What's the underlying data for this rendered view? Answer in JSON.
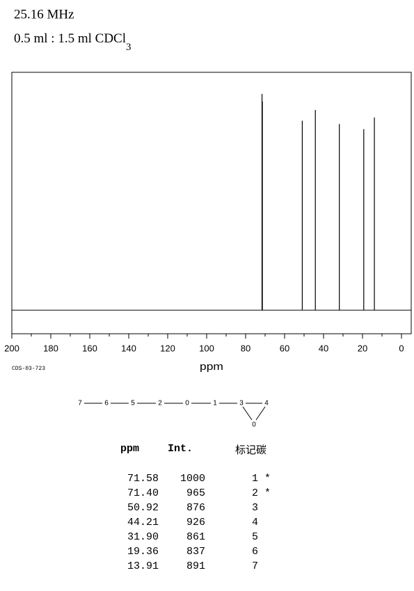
{
  "header": {
    "frequency": "25.16 MHz",
    "solvent": "0.5 ml : 1.5 ml CDCl",
    "solvent_subscript": "3"
  },
  "chart_data": {
    "type": "spectrum",
    "xlabel": "ppm",
    "x": [
      71.58,
      71.4,
      50.92,
      44.21,
      31.9,
      19.36,
      13.91
    ],
    "x_labels": [
      "71.58",
      "71.40",
      "50.92",
      "44.21",
      "31.90",
      "19.36",
      "13.91"
    ],
    "values": [
      1000,
      965,
      876,
      926,
      861,
      837,
      891
    ],
    "color": "#000000",
    "xlim": [
      200,
      -5
    ],
    "xticks": [
      200,
      180,
      160,
      140,
      120,
      100,
      80,
      60,
      40,
      20,
      0
    ],
    "xminorticks": [
      190,
      170,
      150,
      130,
      110,
      90,
      70,
      50,
      30,
      10
    ],
    "ylim": [
      -109,
      1100
    ]
  },
  "code": "CDS-03-723",
  "structure": {
    "nodes": [
      "7",
      "6",
      "5",
      "2",
      "0",
      "1",
      "3",
      "4",
      "0"
    ]
  },
  "table": {
    "columns": [
      "ppm",
      "Int.",
      "标记碳"
    ],
    "assignments": [
      "1 *",
      "2 *",
      "3",
      "4",
      "5",
      "6",
      "7"
    ]
  }
}
